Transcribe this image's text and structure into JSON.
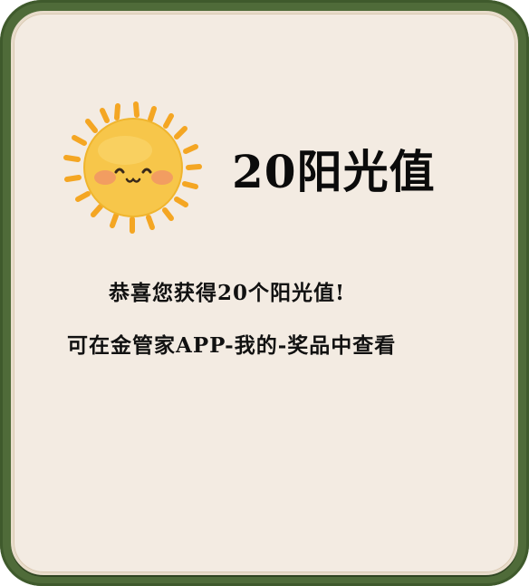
{
  "reward": {
    "amount_label": "20阳光值",
    "congrats_line": "恭喜您获得20个阳光值!",
    "instruction_line": "可在金管家APP-我的-奖品中查看"
  },
  "icons": {
    "sun": "smiling-sun-icon"
  },
  "colors": {
    "frame": "#4f6b39",
    "card": "#f3ebe2",
    "sun_face": "#f7c64a",
    "sun_rays": "#f4a623",
    "cheeks": "#f08b6b"
  }
}
